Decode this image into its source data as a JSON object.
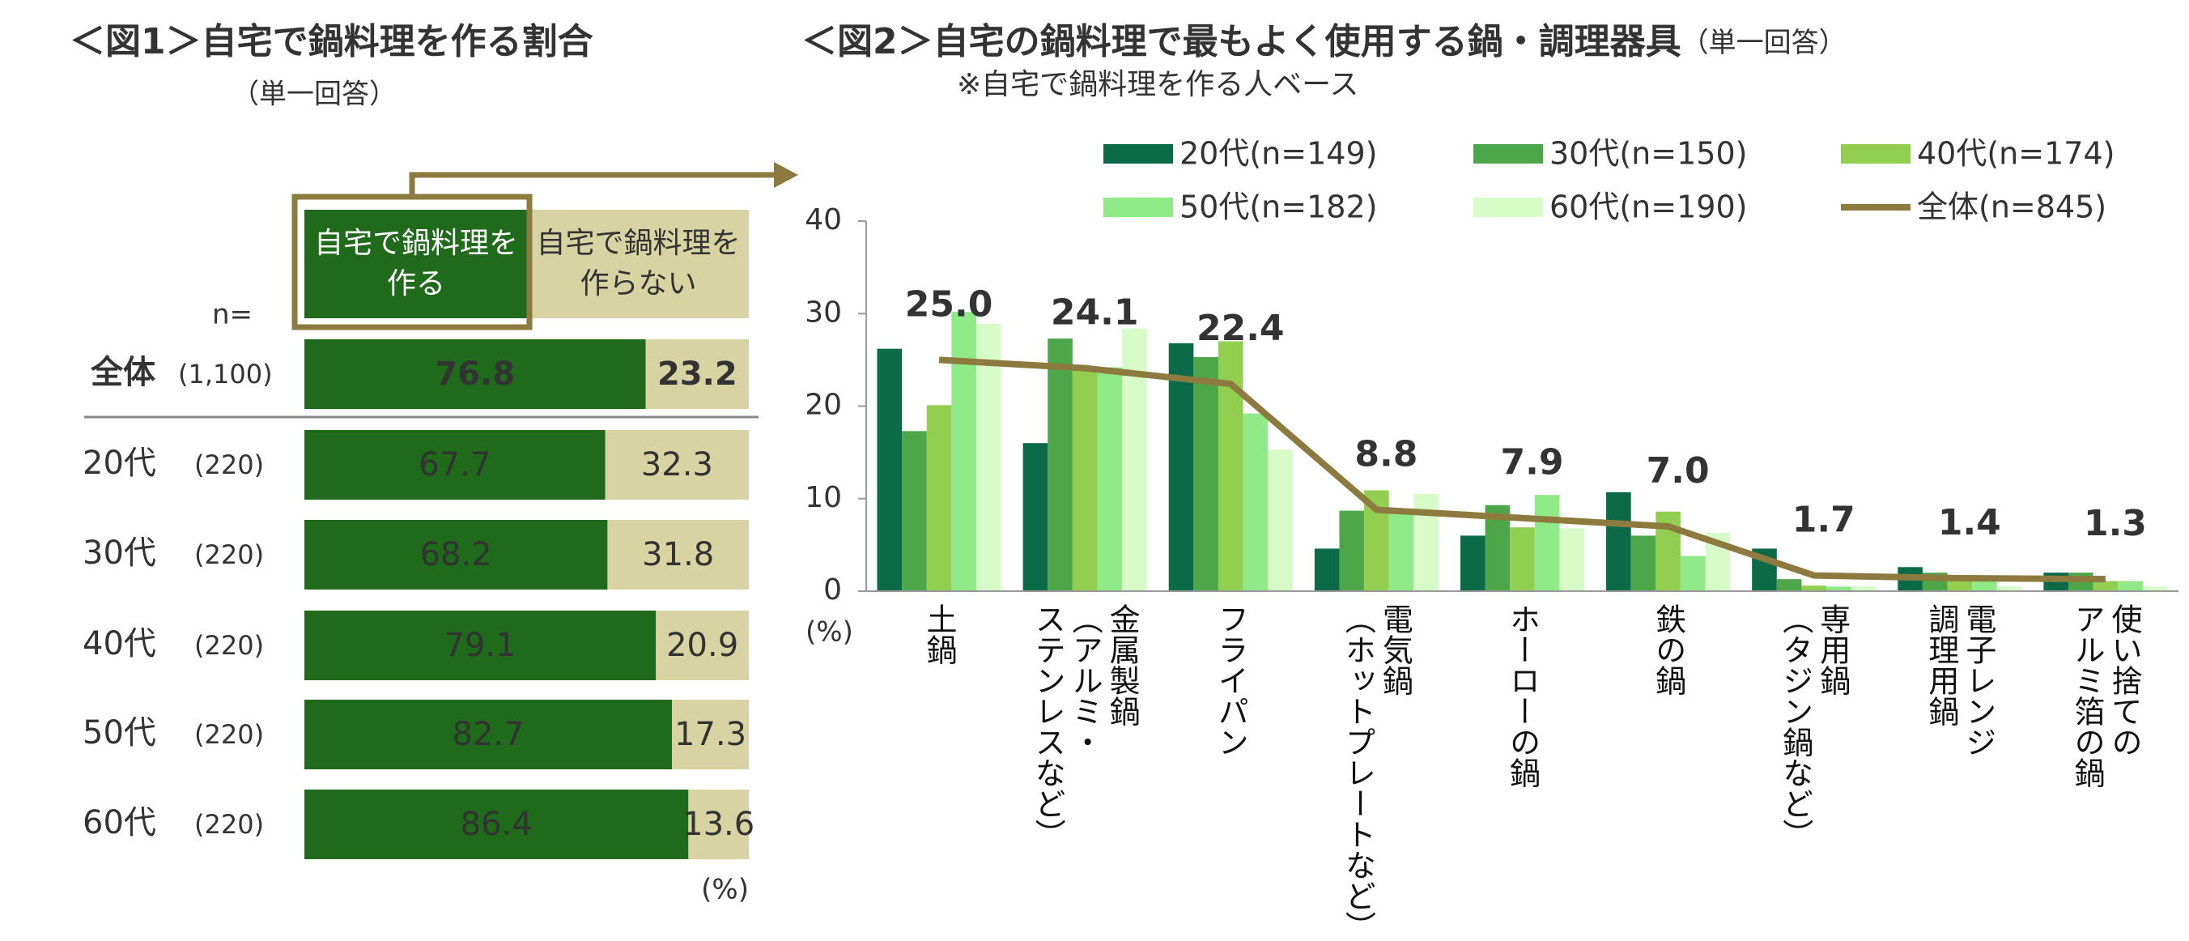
{
  "chart_data": [
    {
      "type": "stacked_bar_h",
      "title": "＜図1＞自宅で鍋料理を作る割合",
      "subtitle": "（単一回答）",
      "n_label": "n=",
      "unit": "(%)",
      "categories": [
        "全体",
        "20代",
        "30代",
        "40代",
        "50代",
        "60代"
      ],
      "n": [
        "(1,100)",
        "(220)",
        "(220)",
        "(220)",
        "(220)",
        "(220)"
      ],
      "xlim": [
        0,
        100
      ],
      "series": [
        {
          "name": "自宅で鍋料理を作る",
          "color": "#1f6b1b",
          "values": [
            76.8,
            67.7,
            68.2,
            79.1,
            82.7,
            86.4
          ]
        },
        {
          "name": "自宅で鍋料理を作らない",
          "color": "#d8d3a3",
          "values": [
            23.2,
            32.3,
            31.8,
            20.9,
            17.3,
            13.6
          ]
        }
      ]
    },
    {
      "type": "bar_line",
      "title": "＜図2＞自宅の鍋料理で最もよく使用する鍋・調理器具",
      "title_note": "（単一回答）",
      "subtitle": "※自宅で鍋料理を作る人ベース",
      "unit": "(%)",
      "categories": [
        "土鍋",
        "金属製鍋\n（アルミ・\nステンレスなど）",
        "フライパン",
        "電気鍋\n（ホットプレートなど）",
        "ホーローの鍋",
        "鉄の鍋",
        "専用鍋\n（タジン鍋など）",
        "電子レンジ\n調理用鍋",
        "使い捨ての\nアルミ箔の鍋"
      ],
      "ylim": [
        0,
        40
      ],
      "yticks": [
        0,
        10,
        20,
        30,
        40
      ],
      "series": [
        {
          "name": "20代(n=149)",
          "color": "#0b6a47",
          "values": [
            26.2,
            16.0,
            26.8,
            4.6,
            6.0,
            10.7,
            4.6,
            2.6,
            2.0
          ]
        },
        {
          "name": "30代(n=150)",
          "color": "#4ea64a",
          "values": [
            17.3,
            27.3,
            25.3,
            8.7,
            9.3,
            6.0,
            1.3,
            2.0,
            2.0
          ]
        },
        {
          "name": "40代(n=174)",
          "color": "#92cf50",
          "values": [
            20.1,
            24.1,
            27.0,
            10.9,
            6.9,
            8.6,
            0.6,
            1.1,
            1.1
          ]
        },
        {
          "name": "50代(n=182)",
          "color": "#90ea88",
          "values": [
            30.2,
            24.2,
            19.2,
            8.8,
            10.4,
            3.8,
            0.5,
            1.1,
            1.1
          ]
        },
        {
          "name": "60代(n=190)",
          "color": "#d8fcc8",
          "values": [
            28.9,
            28.4,
            15.3,
            10.5,
            6.8,
            6.3,
            0.5,
            0.5,
            0.5
          ]
        },
        {
          "name": "全体(n=845)",
          "color": "#8c7a3e",
          "type": "line",
          "values": [
            25.0,
            24.1,
            22.4,
            8.8,
            7.9,
            7.0,
            1.7,
            1.4,
            1.3
          ],
          "value_labels": [
            "25.0",
            "24.1",
            "22.4",
            "8.8",
            "7.9",
            "7.0",
            "1.7",
            "1.4",
            "1.3"
          ]
        }
      ]
    }
  ]
}
